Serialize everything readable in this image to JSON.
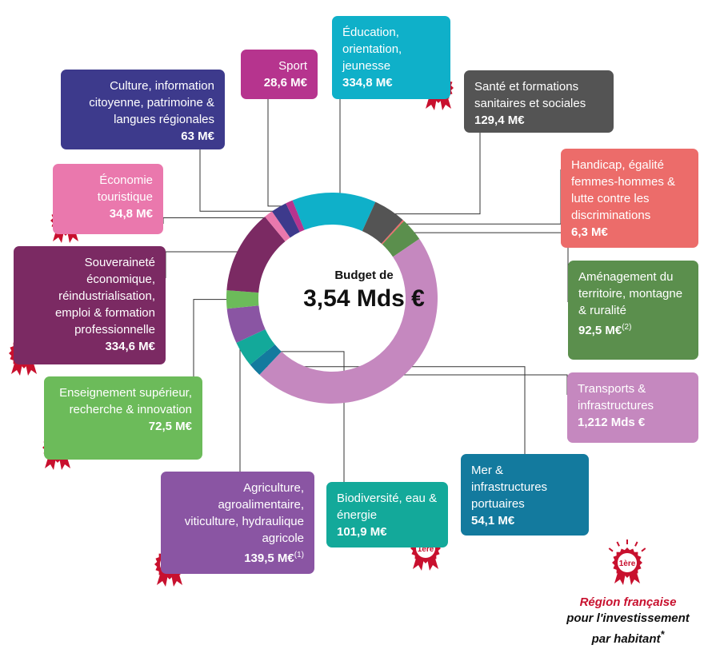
{
  "center": {
    "line1": "Budget de",
    "total": "3,54 Mds €"
  },
  "colors": {
    "education": "#0fb0c9",
    "sante": "#545454",
    "handicap": "#ec6c6a",
    "amenagement": "#5b8f4d",
    "transports": "#c588bf",
    "mer": "#137a9e",
    "biodiversite": "#13a99a",
    "agriculture": "#8a55a3",
    "enseignement": "#6cbb5a",
    "souverainete": "#7b2a63",
    "economie": "#ea78ad",
    "culture": "#3d3a8c",
    "sport": "#b6348e",
    "badge": "#c8102e"
  },
  "boxes": {
    "education": {
      "name": "Éducation, orientation, jeunesse",
      "value": "334,8 M€"
    },
    "sante": {
      "name": "Santé et formations sanitaires et sociales",
      "value": "129,4 M€"
    },
    "handicap": {
      "name": "Handicap, égalité femmes-hommes & lutte contre les discriminations",
      "value": "6,3 M€"
    },
    "amenagement": {
      "name": "Aménagement du territoire, montagne & ruralité",
      "value": "92,5 M€",
      "note": "(2)"
    },
    "transports": {
      "name": "Transports & infrastructures",
      "value": "1,212 Mds €"
    },
    "mer": {
      "name": "Mer & infrastructures portuaires",
      "value": "54,1 M€"
    },
    "biodiversite": {
      "name": "Biodiversité, eau & énergie",
      "value": "101,9 M€"
    },
    "agriculture": {
      "name": "Agriculture, agroalimentaire, viticulture, hydraulique agricole",
      "value": "139,5 M€",
      "note": "(1)"
    },
    "enseignement": {
      "name": "Enseignement supérieur, recherche & innovation",
      "value": "72,5 M€"
    },
    "souverainete": {
      "name": "Souveraineté économique, réindustrialisation, emploi & formation professionnelle",
      "value": "334,6 M€"
    },
    "economie": {
      "name": "Économie touristique",
      "value": "34,8 M€"
    },
    "culture": {
      "name": "Culture, information citoyenne, patrimoine & langues régionales",
      "value": "63 M€"
    },
    "sport": {
      "name": "Sport",
      "value": "28,6 M€"
    }
  },
  "badge_label": "1ère",
  "footer": {
    "line1": "Région française",
    "line2": "pour l'investissement",
    "line3": "par habitant",
    "mark": "*"
  },
  "chart_data": {
    "type": "pie",
    "title": "Budget de 3,54 Mds €",
    "total": "3,54 Mds €",
    "categories": [
      "Éducation, orientation, jeunesse",
      "Santé et formations sanitaires et sociales",
      "Handicap, égalité femmes-hommes & lutte contre les discriminations",
      "Aménagement du territoire, montagne & ruralité",
      "Transports & infrastructures",
      "Mer & infrastructures portuaires",
      "Biodiversité, eau & énergie",
      "Agriculture, agroalimentaire, viticulture, hydraulique agricole",
      "Enseignement supérieur, recherche & innovation",
      "Souveraineté économique, réindustrialisation, emploi & formation professionnelle",
      "Économie touristique",
      "Culture, information citoyenne, patrimoine & langues régionales",
      "Sport"
    ],
    "values": [
      334.8,
      129.4,
      6.3,
      92.5,
      1212,
      54.1,
      101.9,
      139.5,
      72.5,
      334.6,
      34.8,
      63,
      28.6
    ],
    "keys": [
      "education",
      "sante",
      "handicap",
      "amenagement",
      "transports",
      "mer",
      "biodiversite",
      "agriculture",
      "enseignement",
      "souverainete",
      "economie",
      "culture",
      "sport"
    ],
    "unit": "M€"
  }
}
